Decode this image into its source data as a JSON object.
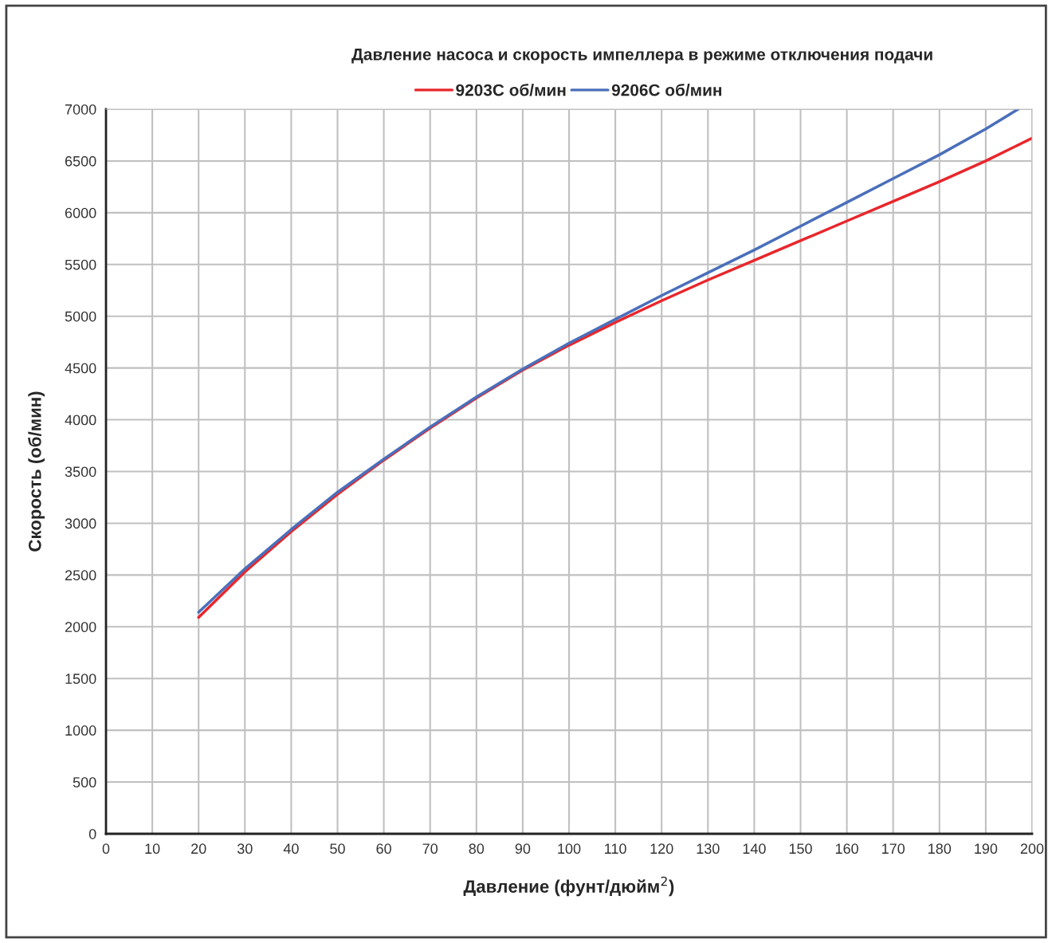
{
  "chart_data": {
    "type": "line",
    "title": "Давление насоса и скорость импеллера в режиме отключения подачи",
    "xlabel": "Давление (фунт/дюйм$^{2}$)",
    "ylabel": "Скорость (об/мин)",
    "series": [
      {
        "name": "9203C об/мин",
        "color": "#e8262b",
        "x": [
          20,
          30,
          40,
          50,
          60,
          70,
          80,
          90,
          100,
          110,
          120,
          130,
          140,
          150,
          160,
          170,
          180,
          190,
          200
        ],
        "values": [
          2090,
          2530,
          2920,
          3280,
          3610,
          3920,
          4210,
          4480,
          4720,
          4940,
          5150,
          5350,
          5540,
          5730,
          5920,
          6110,
          6300,
          6500,
          6720
        ]
      },
      {
        "name": "9206C об/мин",
        "color": "#4a6fba",
        "x": [
          20,
          30,
          40,
          50,
          60,
          70,
          80,
          90,
          100,
          110,
          120,
          130,
          140,
          150,
          160,
          170,
          180,
          190,
          197
        ],
        "values": [
          2140,
          2560,
          2940,
          3300,
          3620,
          3930,
          4220,
          4490,
          4740,
          4970,
          5200,
          5420,
          5640,
          5870,
          6100,
          6330,
          6560,
          6810,
          7000
        ]
      }
    ],
    "xlim": [
      0,
      200
    ],
    "xticks": [
      0,
      10,
      20,
      30,
      40,
      50,
      60,
      70,
      80,
      90,
      100,
      110,
      120,
      130,
      140,
      150,
      160,
      170,
      180,
      190,
      200
    ],
    "ylim": [
      0,
      7000
    ],
    "yticks": [
      0,
      500,
      1000,
      1500,
      2000,
      2500,
      3000,
      3500,
      4000,
      4500,
      5000,
      5500,
      6000,
      6500,
      7000
    ],
    "grid": true,
    "legend": "top",
    "marker": "none",
    "line_style": "solid"
  }
}
